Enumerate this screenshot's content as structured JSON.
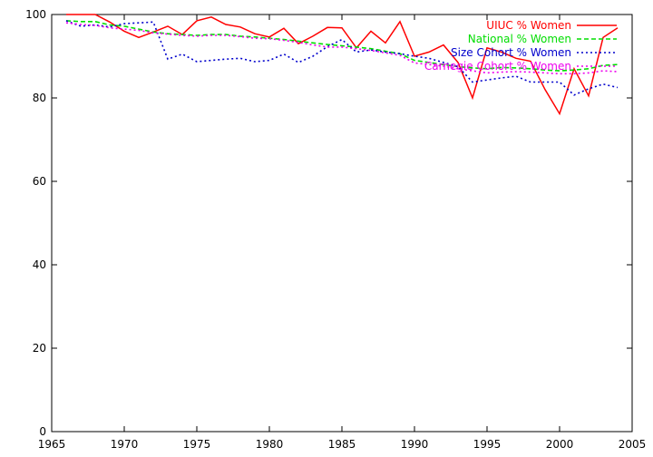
{
  "chart_data": {
    "type": "line",
    "title": "",
    "xlabel": "",
    "ylabel": "",
    "xlim": [
      1965,
      2005
    ],
    "ylim": [
      0,
      100
    ],
    "xticks": [
      1965,
      1970,
      1975,
      1980,
      1985,
      1990,
      1995,
      2000,
      2005
    ],
    "yticks": [
      0,
      20,
      40,
      60,
      80,
      100
    ],
    "grid": false,
    "legend": "top-right",
    "series": [
      {
        "name": "UIUC % Women",
        "color": "#ff0000",
        "dash": "solid",
        "x": [
          1966,
          1967,
          1968,
          1969,
          1970,
          1971,
          1972,
          1973,
          1974,
          1975,
          1976,
          1977,
          1978,
          1979,
          1980,
          1981,
          1982,
          1983,
          1984,
          1985,
          1986,
          1987,
          1988,
          1989,
          1990,
          1991,
          1992,
          1993,
          1994,
          1995,
          1996,
          1997,
          1998,
          1999,
          2000,
          2001,
          2002,
          2003,
          2004
        ],
        "values": [
          100,
          100,
          100,
          98.2,
          96,
          94.5,
          95.8,
          97.2,
          95.2,
          98.5,
          99.4,
          97.6,
          97,
          95.4,
          94.6,
          96.7,
          93,
          94.8,
          96.9,
          96.8,
          92,
          96,
          93.2,
          98.3,
          90,
          91,
          92.7,
          88.5,
          80,
          92,
          91,
          89.5,
          88.8,
          82,
          76.2,
          87,
          80.5,
          94.5,
          96.8
        ]
      },
      {
        "name": "National % Women",
        "color": "#00dd00",
        "dash": "dashed",
        "x": [
          1966,
          1967,
          1968,
          1969,
          1970,
          1971,
          1972,
          1973,
          1974,
          1975,
          1976,
          1977,
          1978,
          1979,
          1980,
          1981,
          1982,
          1983,
          1984,
          1985,
          1986,
          1987,
          1988,
          1989,
          1990,
          1991,
          1992,
          1993,
          1994,
          1995,
          1996,
          1997,
          1998,
          1999,
          2000,
          2001,
          2002,
          2003,
          2004
        ],
        "values": [
          98.5,
          98.3,
          98.3,
          97.5,
          97.2,
          96.5,
          95.8,
          95.4,
          95.2,
          95,
          95.2,
          95.2,
          94.8,
          94.6,
          94.3,
          94,
          93.6,
          93.2,
          92.8,
          92.5,
          92.2,
          91.8,
          91.2,
          90.6,
          89,
          88.5,
          88,
          87.5,
          87.2,
          87,
          87.3,
          87.2,
          87,
          86.7,
          86.5,
          86.7,
          87,
          87.8,
          88
        ]
      },
      {
        "name": "Size Cohort % Women",
        "color": "#0000cc",
        "dash": "dotted",
        "x": [
          1966,
          1967,
          1968,
          1969,
          1970,
          1971,
          1972,
          1973,
          1974,
          1975,
          1976,
          1977,
          1978,
          1979,
          1980,
          1981,
          1982,
          1983,
          1984,
          1985,
          1986,
          1987,
          1988,
          1989,
          1990,
          1991,
          1992,
          1993,
          1994,
          1995,
          1996,
          1997,
          1998,
          1999,
          2000,
          2001,
          2002,
          2003,
          2004
        ],
        "values": [
          98.5,
          97.2,
          97.5,
          97,
          97.8,
          98,
          98.2,
          89.3,
          90.5,
          88.7,
          89,
          89.3,
          89.5,
          88.7,
          89,
          90.5,
          88.5,
          90,
          92.3,
          94,
          91,
          91.5,
          91,
          90.6,
          90,
          89.5,
          88.5,
          87.5,
          83.8,
          84.3,
          84.8,
          85.2,
          83.8,
          83.8,
          83.8,
          80.7,
          82.2,
          83.3,
          82.5
        ]
      },
      {
        "name": "Carnegie Cohort % Women",
        "color": "#ee00ee",
        "dash": "dotted",
        "x": [
          1966,
          1967,
          1968,
          1969,
          1970,
          1971,
          1972,
          1973,
          1974,
          1975,
          1976,
          1977,
          1978,
          1979,
          1980,
          1981,
          1982,
          1983,
          1984,
          1985,
          1986,
          1987,
          1988,
          1989,
          1990,
          1991,
          1992,
          1993,
          1994,
          1995,
          1996,
          1997,
          1998,
          1999,
          2000,
          2001,
          2002,
          2003,
          2004
        ],
        "values": [
          98,
          97.6,
          97.4,
          96.8,
          96.5,
          96.2,
          95.6,
          95.3,
          95,
          94.8,
          95,
          95,
          94.7,
          94.3,
          94.2,
          93.8,
          93.3,
          92.7,
          92.2,
          92.2,
          91.8,
          91.4,
          90.8,
          90.2,
          88.4,
          88,
          87.6,
          87,
          86.5,
          86,
          86.2,
          86.3,
          86.2,
          86,
          85.8,
          85.8,
          86,
          86.5,
          86.3
        ]
      }
    ]
  }
}
